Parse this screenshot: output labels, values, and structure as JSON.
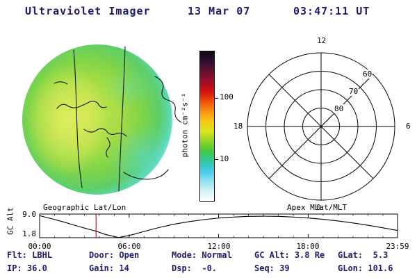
{
  "header": {
    "title": "Ultraviolet Imager",
    "date": "13 Mar 07",
    "time": "03:47:11 UT"
  },
  "colorbar": {
    "label": "photon cm⁻²s⁻¹",
    "tick_top": "100",
    "tick_bottom": "10",
    "colors_bottom_to_top": [
      "#ffffff",
      "#d2f2f8",
      "#8fe2f2",
      "#44c9ec",
      "#2fc9a0",
      "#45c93e",
      "#8fd422",
      "#dce41e",
      "#f8c614",
      "#f89212",
      "#f04c0a",
      "#d31111",
      "#9b0e2a",
      "#651031",
      "#2e0f33",
      "#120a1c"
    ]
  },
  "uv_image": {
    "overlay_label": "Geographic Lat/Lon"
  },
  "polar_plot": {
    "label": "Apex MLat/MLT",
    "mlt_top": "12",
    "mlt_left": "18",
    "mlt_right": "6",
    "mlt_bottom": "0",
    "ring_labels": [
      "60",
      "70",
      "80"
    ]
  },
  "timeline": {
    "ylabel": "GC Alt",
    "ytick_top": "9.0",
    "ytick_bottom": "1.8",
    "xticks": [
      "00:00",
      "06:00",
      "12:00",
      "18:00",
      "23:59"
    ],
    "marker_color": "#cc1111"
  },
  "status": {
    "row1": [
      "Flt: LBHL",
      "Door: Open",
      "Mode: Normal",
      "GC Alt: 3.8 Re",
      "GLat:  5.3"
    ],
    "row2": [
      "IP: 36.0",
      "Gain: 14",
      "Dsp:  -0.",
      "Seq: 39",
      "GLon: 101.6"
    ]
  },
  "chart_data": [
    {
      "type": "heatmap",
      "title": "Ultraviolet Imager Earth disk",
      "overlay": "Geographic Lat/Lon coastlines and meridians",
      "units": "photon cm⁻²s⁻¹",
      "scale": "log",
      "colorbar_ticks": [
        100,
        10
      ],
      "description": "Full Earth disk UV emission mostly 10-100 photon cm-2 s-1 (green/yellow), brighter yellow on left dayside, dim cyan speckle toward limb"
    },
    {
      "type": "polar",
      "title": "Apex MLat/MLT",
      "ring_mlat": [
        80,
        70,
        60,
        50
      ],
      "mlt_ticks": [
        12,
        18,
        6,
        0
      ],
      "grid": true
    },
    {
      "type": "line",
      "title": "GC Alt",
      "ylabel": "GC Alt",
      "ylim": [
        1.8,
        9.0
      ],
      "yticks": [
        9.0,
        1.8
      ],
      "xticks": [
        "00:00",
        "06:00",
        "12:00",
        "18:00",
        "23:59"
      ],
      "x_range_hours": [
        0,
        23.983
      ],
      "x_hours": [
        0,
        0.8,
        1.6,
        2.4,
        3.2,
        3.78,
        4.4,
        5.3,
        6.2,
        7,
        8,
        9,
        10,
        11,
        12,
        13,
        14,
        15,
        16,
        17,
        18,
        19,
        20,
        21,
        22,
        23,
        23.98
      ],
      "alt_re": [
        8.5,
        7.6,
        6.6,
        5.5,
        4.5,
        3.8,
        2.8,
        1.85,
        2.7,
        3.7,
        4.9,
        5.9,
        6.7,
        7.3,
        7.8,
        8.1,
        8.3,
        8.35,
        8.3,
        8.1,
        7.8,
        7.4,
        6.9,
        6.3,
        5.6,
        4.8,
        4.0
      ],
      "current_time_marker_hours": 3.78,
      "current_gc_alt_re": 3.8
    }
  ]
}
